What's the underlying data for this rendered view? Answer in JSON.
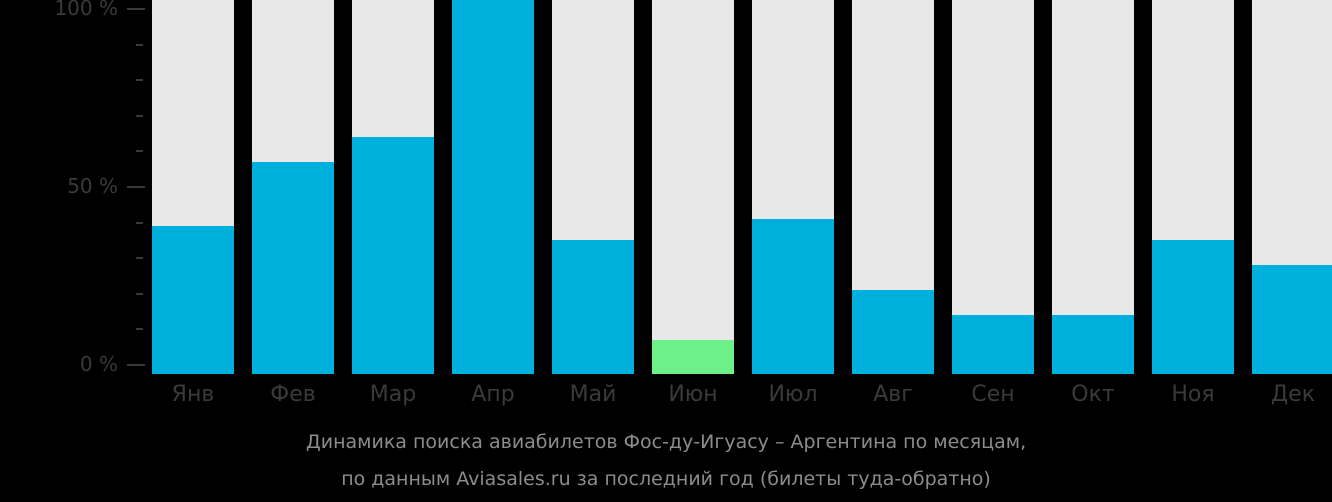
{
  "chart_data": {
    "type": "bar",
    "title": "Динамика поиска авиабилетов Фос-ду-Игуасу – Аргентина по месяцам,",
    "subtitle": "по данным Aviasales.ru за последний год (билеты туда-обратно)",
    "xlabel": "",
    "ylabel": "",
    "ylim": [
      0,
      100
    ],
    "y_ticks": [
      "0 %",
      "50 %",
      "100 %"
    ],
    "categories": [
      "Янв",
      "Фев",
      "Мар",
      "Апр",
      "Май",
      "Июн",
      "Июл",
      "Авг",
      "Сен",
      "Окт",
      "Ноя",
      "Дек"
    ],
    "values": [
      39,
      57,
      64,
      100,
      35,
      7,
      41,
      21,
      14,
      14,
      35,
      28
    ],
    "highlight_min_index": 5,
    "colors": {
      "bar": "#00b0dc",
      "min_bar": "#6cf087",
      "background_bar": "#e8e8e8"
    },
    "grid": false,
    "legend": null
  }
}
